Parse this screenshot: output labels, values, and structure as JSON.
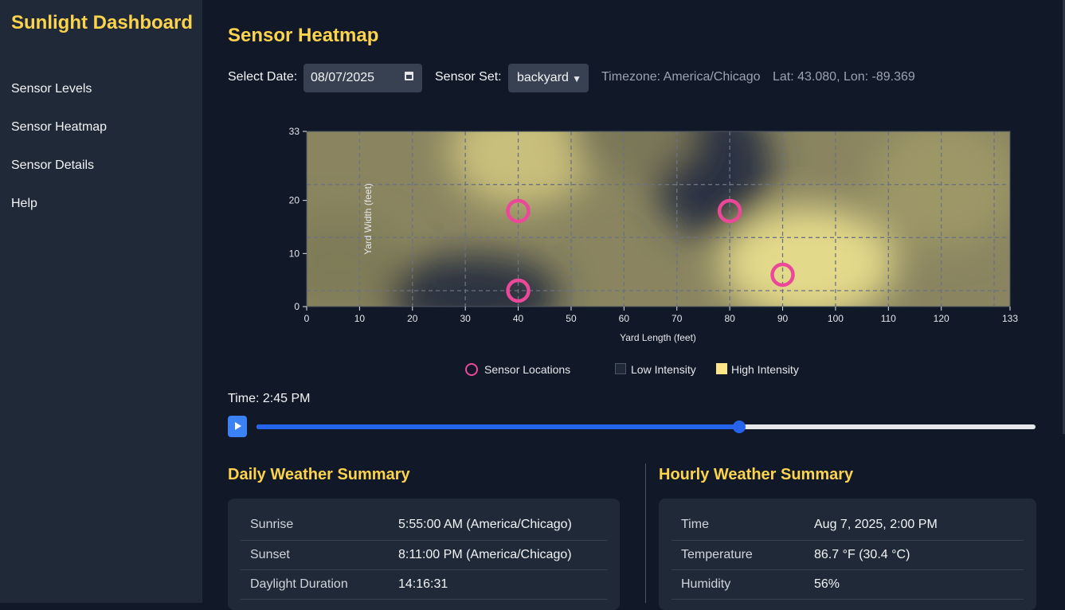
{
  "app": {
    "title": "Sunlight Dashboard"
  },
  "sidebar": {
    "items": [
      {
        "label": "Sensor Levels"
      },
      {
        "label": "Sensor Heatmap"
      },
      {
        "label": "Sensor Details"
      },
      {
        "label": "Help"
      }
    ]
  },
  "page": {
    "title": "Sensor Heatmap"
  },
  "controls": {
    "date_label": "Select Date:",
    "date_value": "08/07/2025",
    "sensor_set_label": "Sensor Set:",
    "sensor_set_value": "backyard",
    "timezone": "Timezone: America/Chicago",
    "location": "Lat: 43.080, Lon: -89.369"
  },
  "heatmap": {
    "x_label": "Yard Length (feet)",
    "y_label": "Yard Width (feet)",
    "x_ticks": [
      "0",
      "10",
      "20",
      "30",
      "40",
      "50",
      "60",
      "70",
      "80",
      "90",
      "100",
      "110",
      "120",
      "133"
    ],
    "y_ticks": [
      "0",
      "10",
      "20",
      "33"
    ],
    "x_range": [
      0,
      133
    ],
    "y_range": [
      0,
      33
    ],
    "colors": {
      "low": "#1f2937",
      "high": "#fde68a",
      "sensor": "#ec4899"
    },
    "sensors": [
      {
        "x": 40,
        "y": 18
      },
      {
        "x": 40,
        "y": 3
      },
      {
        "x": 80,
        "y": 18
      },
      {
        "x": 90,
        "y": 6
      }
    ]
  },
  "legend": {
    "sensor_label": "Sensor Locations",
    "low_label": "Low Intensity",
    "high_label": "High Intensity"
  },
  "time": {
    "label": "Time: 2:45 PM",
    "progress": 0.62
  },
  "daily": {
    "title": "Daily Weather Summary",
    "rows": [
      {
        "k": "Sunrise",
        "v": "5:55:00 AM (America/Chicago)"
      },
      {
        "k": "Sunset",
        "v": "8:11:00 PM (America/Chicago)"
      },
      {
        "k": "Daylight Duration",
        "v": "14:16:31"
      }
    ]
  },
  "hourly": {
    "title": "Hourly Weather Summary",
    "rows": [
      {
        "k": "Time",
        "v": "Aug 7, 2025, 2:00 PM"
      },
      {
        "k": "Temperature",
        "v": "86.7 °F (30.4 °C)"
      },
      {
        "k": "Humidity",
        "v": "56%"
      }
    ]
  }
}
